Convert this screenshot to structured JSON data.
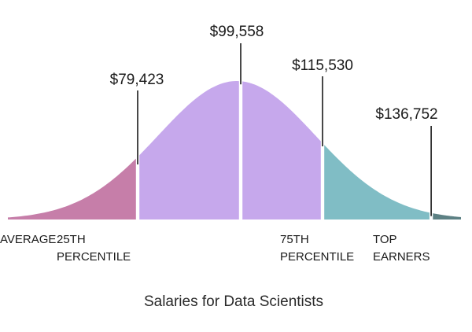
{
  "chart_data": {
    "type": "area",
    "title": "Salaries for Data Scientists",
    "distribution": "normal",
    "markers": [
      {
        "value": 79423,
        "label": "$79,423"
      },
      {
        "value": 99558,
        "label": "$99,558"
      },
      {
        "value": 115530,
        "label": "$115,530"
      },
      {
        "value": 136752,
        "label": "$136,752"
      }
    ],
    "segments": [
      {
        "name": "25th percentile",
        "label_lines": [
          "25TH",
          "PERCENTILE"
        ],
        "color": "#c67ea9"
      },
      {
        "name": "average",
        "label_lines": [
          "AVERAGE"
        ],
        "color": "#c6a8ec"
      },
      {
        "name": "average-upper",
        "label_lines": [],
        "color": "#c6a8ec"
      },
      {
        "name": "75th percentile",
        "label_lines": [
          "75TH",
          "PERCENTILE"
        ],
        "color": "#80bdc5"
      },
      {
        "name": "top earners",
        "label_lines": [
          "TOP",
          "EARNERS"
        ],
        "color": "#5d8184"
      }
    ],
    "colors": {
      "text": "#1a1a1a",
      "caption": "#2a2a2a",
      "divider": "#ffffff",
      "leader_line": "#1a1a1a"
    }
  }
}
